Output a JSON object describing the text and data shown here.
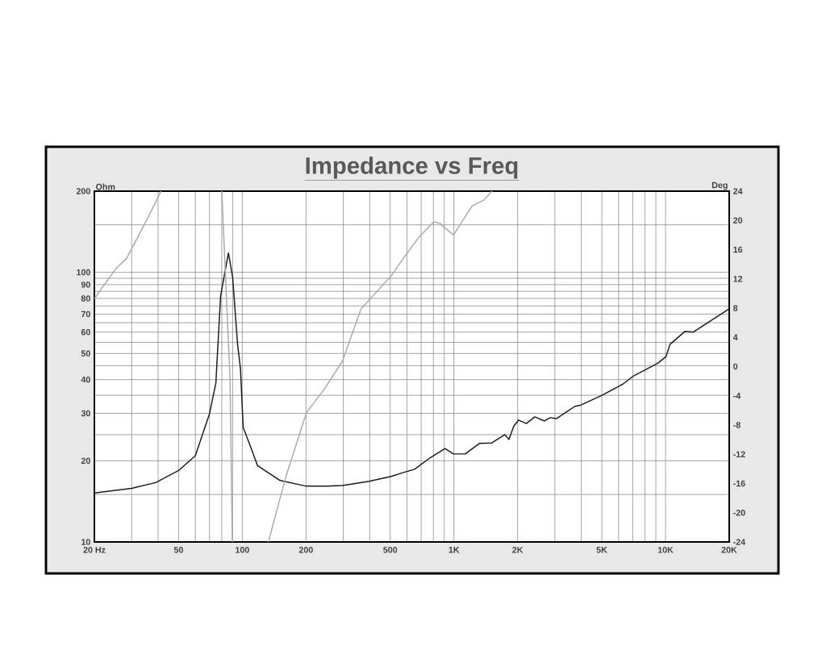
{
  "chart_data": {
    "type": "line",
    "title": "Impedance vs Freq",
    "ylabel": "Ohm",
    "y2label": "Deg",
    "log": "xy",
    "grid": true,
    "xlim": [
      20,
      20000
    ],
    "xticks": [
      {
        "value": 20,
        "label": "20  Hz"
      },
      {
        "value": 30,
        "label": null
      },
      {
        "value": 40,
        "label": null
      },
      {
        "value": 50,
        "label": "50"
      },
      {
        "value": 60,
        "label": null
      },
      {
        "value": 70,
        "label": null
      },
      {
        "value": 80,
        "label": null
      },
      {
        "value": 90,
        "label": null
      },
      {
        "value": 100,
        "label": "100"
      },
      {
        "value": 200,
        "label": "200"
      },
      {
        "value": 300,
        "label": null
      },
      {
        "value": 400,
        "label": null
      },
      {
        "value": 500,
        "label": "500"
      },
      {
        "value": 600,
        "label": null
      },
      {
        "value": 700,
        "label": null
      },
      {
        "value": 800,
        "label": null
      },
      {
        "value": 900,
        "label": null
      },
      {
        "value": 1000,
        "label": "1K"
      },
      {
        "value": 2000,
        "label": "2K"
      },
      {
        "value": 3000,
        "label": null
      },
      {
        "value": 4000,
        "label": null
      },
      {
        "value": 5000,
        "label": "5K"
      },
      {
        "value": 6000,
        "label": null
      },
      {
        "value": 7000,
        "label": null
      },
      {
        "value": 8000,
        "label": null
      },
      {
        "value": 9000,
        "label": null
      },
      {
        "value": 10000,
        "label": "10K"
      },
      {
        "value": 20000,
        "label": "20K"
      }
    ],
    "ylim": [
      10,
      200
    ],
    "yticks": [
      10,
      {
        "value": 15,
        "label": null
      },
      20,
      {
        "value": 25,
        "label": null
      },
      30,
      {
        "value": 35,
        "label": null
      },
      40,
      {
        "value": 45,
        "label": null
      },
      50,
      {
        "value": 55,
        "label": null
      },
      60,
      {
        "value": 65,
        "label": null
      },
      70,
      {
        "value": 75,
        "label": null
      },
      80,
      {
        "value": 85,
        "label": null
      },
      90,
      {
        "value": 95,
        "label": null
      },
      100,
      {
        "value": 150,
        "label": null
      },
      200
    ],
    "y2lim": [
      -24,
      24
    ],
    "y2ticks": [
      -24,
      -20,
      -16,
      -12,
      -8,
      -4,
      0,
      4,
      8,
      12,
      16,
      20,
      24
    ],
    "series": [
      {
        "color": "#1a1a1a",
        "x": [
          20,
          30,
          39,
          50,
          60,
          70,
          75,
          79,
          86,
          90,
          95,
          98,
          101,
          111,
          118,
          151,
          201,
          251,
          298,
          398,
          505,
          577,
          652,
          770,
          908,
          995,
          1130,
          1320,
          1510,
          1740,
          1820,
          1920,
          2020,
          2200,
          2410,
          2680,
          2850,
          3060,
          3720,
          3990,
          5010,
          6290,
          7070,
          9190,
          10060,
          10510,
          12330,
          13500,
          20000
        ],
        "values": [
          15.2,
          15.8,
          16.6,
          18.4,
          20.9,
          29.9,
          38.8,
          81.9,
          118,
          96,
          54,
          44,
          26.6,
          21.9,
          19.2,
          16.9,
          16.1,
          16.1,
          16.2,
          16.8,
          17.5,
          18.1,
          18.6,
          20.5,
          22.2,
          21.2,
          21.2,
          23.2,
          23.3,
          25.0,
          24.0,
          26.9,
          28.3,
          27.5,
          29.1,
          28.1,
          28.9,
          28.7,
          31.8,
          32.2,
          35.0,
          38.5,
          41.3,
          46.0,
          48.7,
          54.1,
          60.3,
          60.0,
          73.2
        ]
      },
      {
        "color": "#aaaaaa",
        "axis": "y2",
        "x": [
          20,
          25.3,
          28.4,
          36.3,
          41.3,
          60,
          80,
          87.5,
          89.7,
          110,
          132.8,
          161,
          201,
          244,
          298,
          364,
          505,
          577,
          688,
          804,
          856,
          995,
          1220,
          1390,
          1510
        ],
        "values": [
          9.3,
          13.4,
          14.8,
          20.7,
          24,
          null,
          24,
          -1.7,
          -24,
          null,
          -24,
          -15,
          -6.3,
          -3.1,
          0.8,
          7.9,
          12.4,
          14.8,
          17.8,
          19.8,
          19.6,
          18.0,
          22.0,
          22.8,
          24
        ]
      }
    ]
  }
}
